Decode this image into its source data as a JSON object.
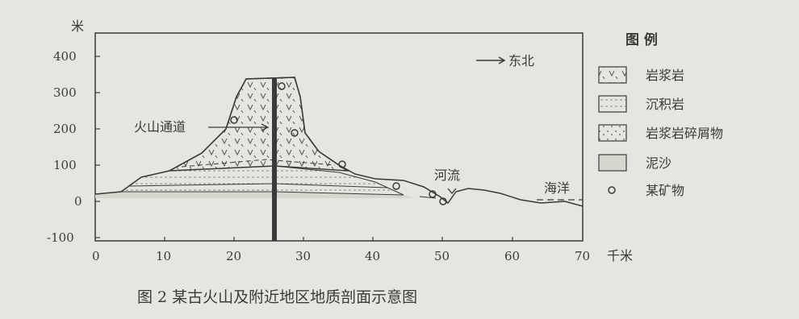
{
  "figure": {
    "caption": "图 2  某古火山及附近地区地质剖面示意图",
    "y_unit": "米",
    "x_unit": "千米",
    "y_ticks": [
      "400",
      "300",
      "200",
      "100",
      "0",
      "-100"
    ],
    "x_ticks": [
      "0",
      "10",
      "20",
      "30",
      "40",
      "50",
      "60",
      "70"
    ],
    "direction": "东北",
    "annotations": {
      "volcanic_vent": "火山通道",
      "river": "河流",
      "ocean": "海洋"
    }
  },
  "legend": {
    "title": "图 例",
    "items": [
      {
        "label": "岩浆岩",
        "pattern": "magmatic"
      },
      {
        "label": "沉积岩",
        "pattern": "sedimentary"
      },
      {
        "label": "岩浆岩碎屑物",
        "pattern": "debris"
      },
      {
        "label": "泥沙",
        "pattern": "silt"
      },
      {
        "label": "某矿物",
        "pattern": "mineral"
      }
    ]
  },
  "colors": {
    "background": "#e6e5df",
    "ink": "#3a3a3a"
  }
}
